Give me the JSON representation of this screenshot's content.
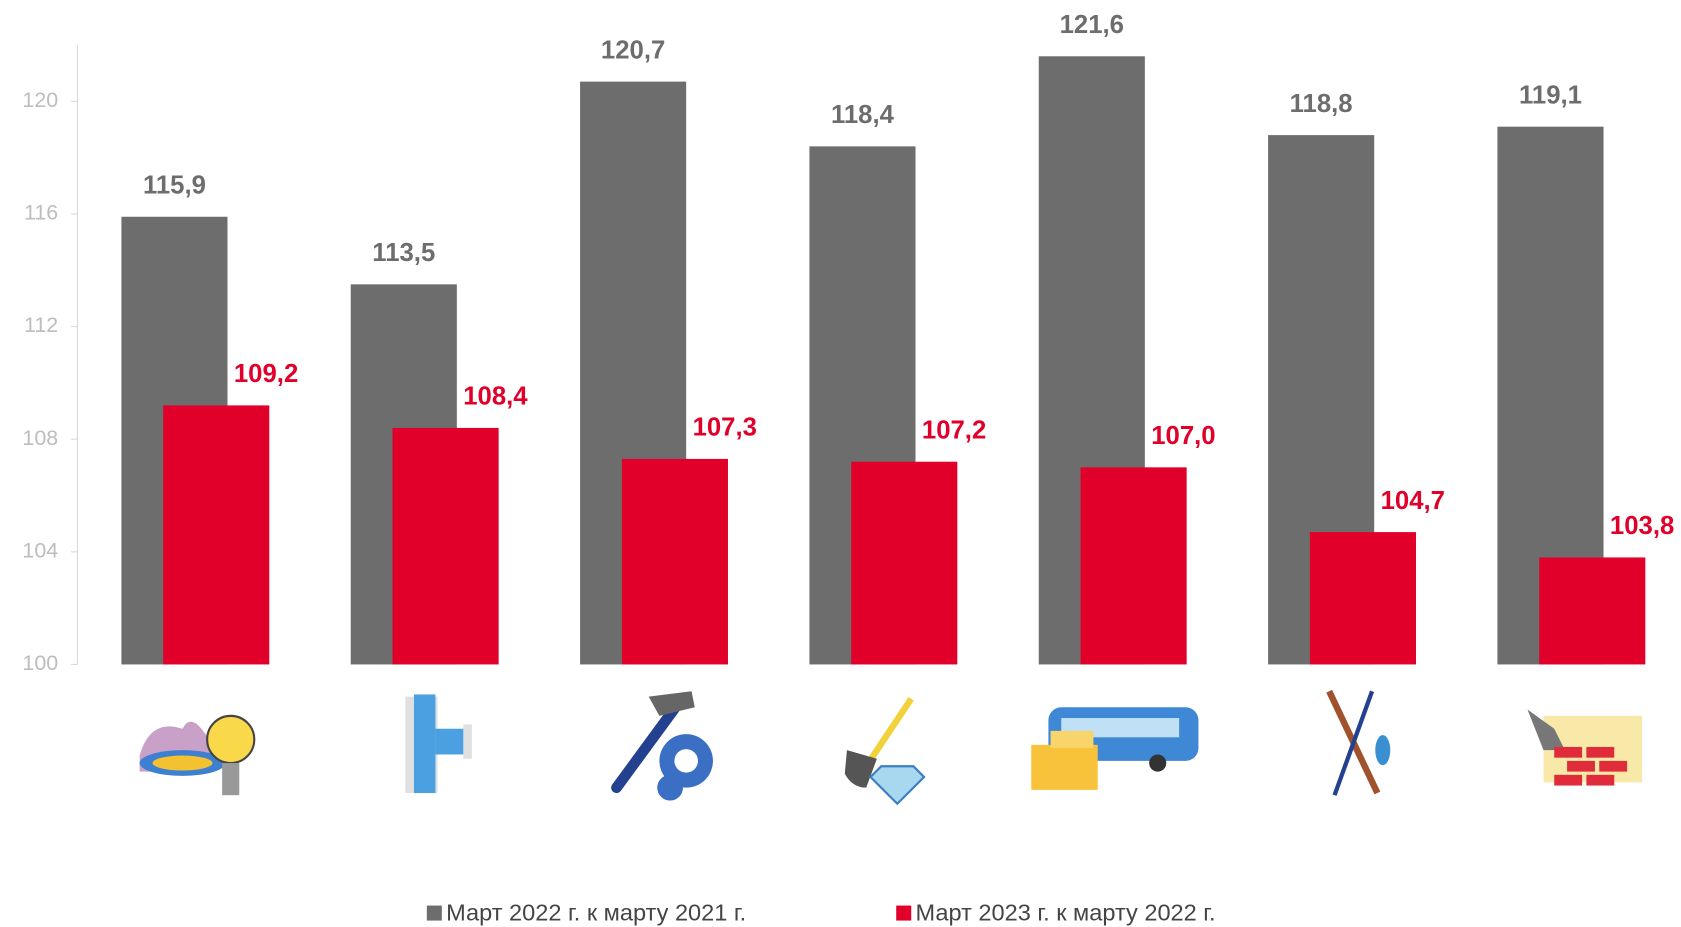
{
  "chart_data": {
    "type": "bar",
    "categories": [
      null,
      null,
      null,
      null,
      null,
      null,
      null
    ],
    "series": [
      {
        "name": "Март 2022 г. к марту 2021 г.",
        "color": "#6d6d6d",
        "values": [
          115.9,
          113.5,
          120.7,
          118.4,
          121.6,
          118.8,
          119.1
        ],
        "value_labels": [
          "115,9",
          "113,5",
          "120,7",
          "118,4",
          "121,6",
          "118,8",
          "119,1"
        ]
      },
      {
        "name": "Март 2023 г. к марту 2022 г.",
        "color": "#e0002a",
        "values": [
          109.2,
          108.4,
          107.3,
          107.2,
          107.0,
          104.7,
          103.8
        ],
        "value_labels": [
          "109,2",
          "108,4",
          "107,3",
          "107,2",
          "107,0",
          "104,7",
          "103,8"
        ]
      }
    ],
    "ylim": [
      100,
      122
    ],
    "yticks": [
      100,
      104,
      108,
      112,
      116,
      120
    ],
    "legend": "bottom"
  }
}
